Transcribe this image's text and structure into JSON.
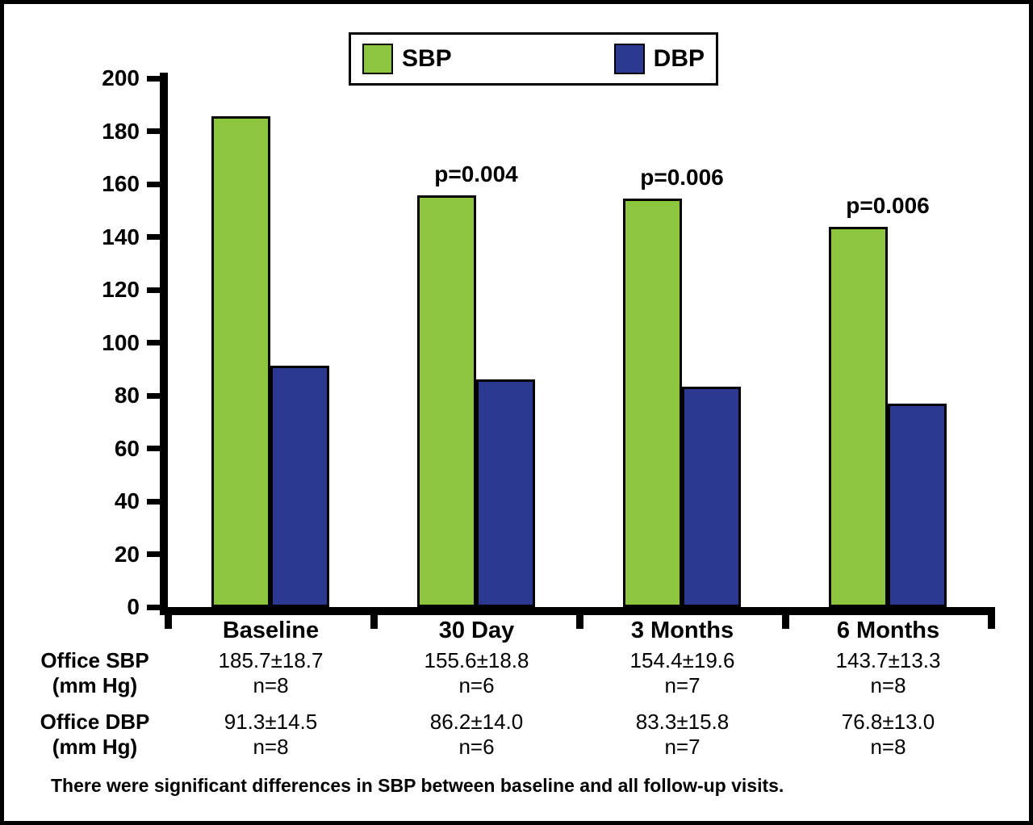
{
  "chart_data": {
    "type": "bar",
    "title": "",
    "xlabel": "",
    "ylabel": "",
    "categories": [
      "Baseline",
      "30 Day",
      "3 Months",
      "6 Months"
    ],
    "series": [
      {
        "name": "SBP",
        "color": "#8CC63F",
        "values": [
          185.7,
          155.6,
          154.4,
          143.7
        ]
      },
      {
        "name": "DBP",
        "color": "#2B3990",
        "values": [
          91.3,
          86.2,
          83.3,
          76.8
        ]
      }
    ],
    "annotations": [
      "",
      "p=0.004",
      "p=0.006",
      "p=0.006"
    ],
    "ylim": [
      0,
      200
    ],
    "ytick_step": 20,
    "grid": false,
    "legend_position": "top-center"
  },
  "legend": {
    "items": [
      {
        "label": "SBP",
        "color": "#8CC63F"
      },
      {
        "label": "DBP",
        "color": "#2B3990"
      }
    ]
  },
  "table": {
    "rows": [
      {
        "label": [
          "Office SBP",
          "(mm Hg)"
        ],
        "values": [
          "185.7±18.7",
          "155.6±18.8",
          "154.4±19.6",
          "143.7±13.3"
        ],
        "n": [
          "n=8",
          "n=6",
          "n=7",
          "n=8"
        ]
      },
      {
        "label": [
          "Office DBP",
          "(mm Hg)"
        ],
        "values": [
          "91.3±14.5",
          "86.2±14.0",
          "83.3±15.8",
          "76.8±13.0"
        ],
        "n": [
          "n=8",
          "n=6",
          "n=7",
          "n=8"
        ]
      }
    ]
  },
  "footer": {
    "text": "There were significant differences in SBP between baseline and all follow-up visits."
  }
}
